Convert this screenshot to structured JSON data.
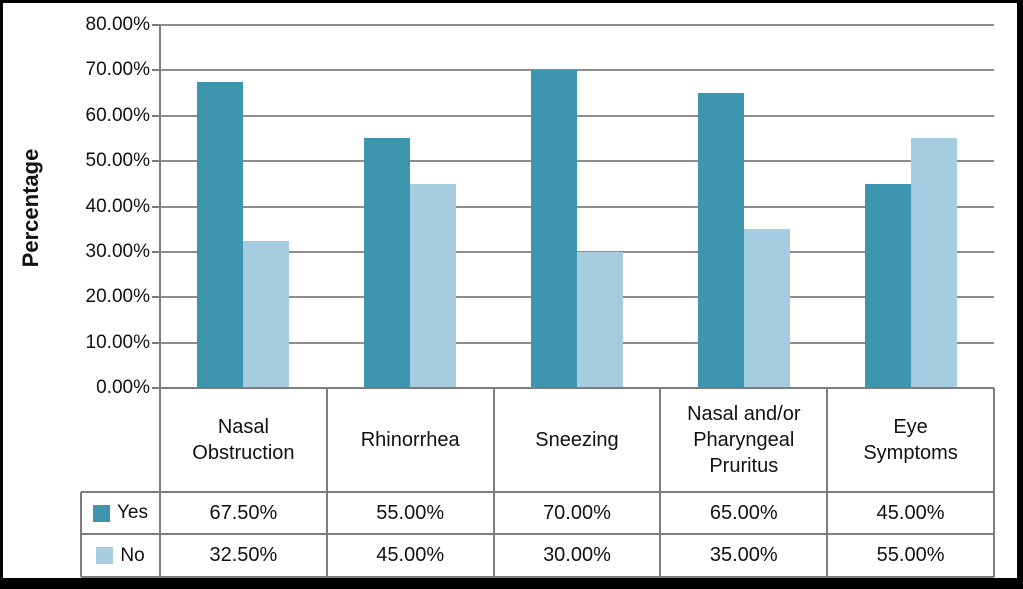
{
  "chart_data": {
    "type": "bar",
    "title": "",
    "ylabel": "Percentage",
    "xlabel": "",
    "categories": [
      "Nasal\nObstruction",
      "Rhinorrhea",
      "Sneezing",
      "Nasal and/or\nPharyngeal\nPruritus",
      "Eye\nSymptoms"
    ],
    "series": [
      {
        "name": "Yes",
        "values": [
          67.5,
          55.0,
          70.0,
          65.0,
          45.0
        ],
        "labels": [
          "67.50%",
          "55.00%",
          "70.00%",
          "65.00%",
          "45.00%"
        ],
        "color": "#3D95AE"
      },
      {
        "name": "No",
        "values": [
          32.5,
          45.0,
          30.0,
          35.0,
          55.0
        ],
        "labels": [
          "32.50%",
          "45.00%",
          "30.00%",
          "35.00%",
          "55.00%"
        ],
        "color": "#A5CDDF"
      }
    ],
    "y_axis": {
      "min": 0,
      "max": 80,
      "tick_step": 10,
      "tick_labels": [
        "0.00%",
        "10.00%",
        "20.00%",
        "30.00%",
        "40.00%",
        "50.00%",
        "60.00%",
        "70.00%",
        "80.00%"
      ]
    },
    "grid": true,
    "legend_position": "table-left-column"
  },
  "colors": {
    "bar_yes": "#3D95AE",
    "bar_no": "#A5CDDF",
    "gridline": "#8d8d8d",
    "table_border": "#7d7d7d",
    "text": "#111111",
    "background": "#ffffff",
    "frame": "#000000"
  }
}
